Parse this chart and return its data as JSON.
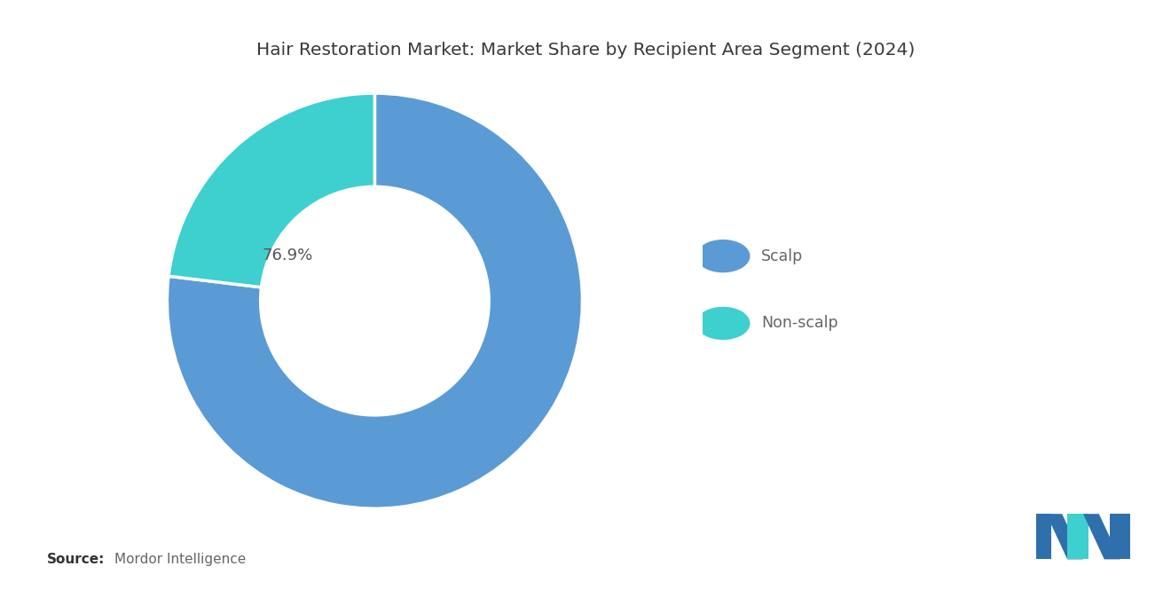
{
  "title": "Hair Restoration Market: Market Share by Recipient Area Segment (2024)",
  "segments": [
    "Scalp",
    "Non-scalp"
  ],
  "values": [
    76.9,
    23.1
  ],
  "colors": [
    "#5b9bd5",
    "#3ecfcf"
  ],
  "label_text": "76.9%",
  "label_color": "#555555",
  "background_color": "#ffffff",
  "source_bold": "Source:",
  "source_text": "Mordor Intelligence",
  "legend_items": [
    {
      "label": "Scalp",
      "color": "#5b9bd5"
    },
    {
      "label": "Non-scalp",
      "color": "#3ecfcf"
    }
  ],
  "donut_hole_ratio": 0.55,
  "title_fontsize": 14.5,
  "label_fontsize": 13,
  "legend_fontsize": 12.5,
  "source_fontsize": 11,
  "startangle": 90
}
